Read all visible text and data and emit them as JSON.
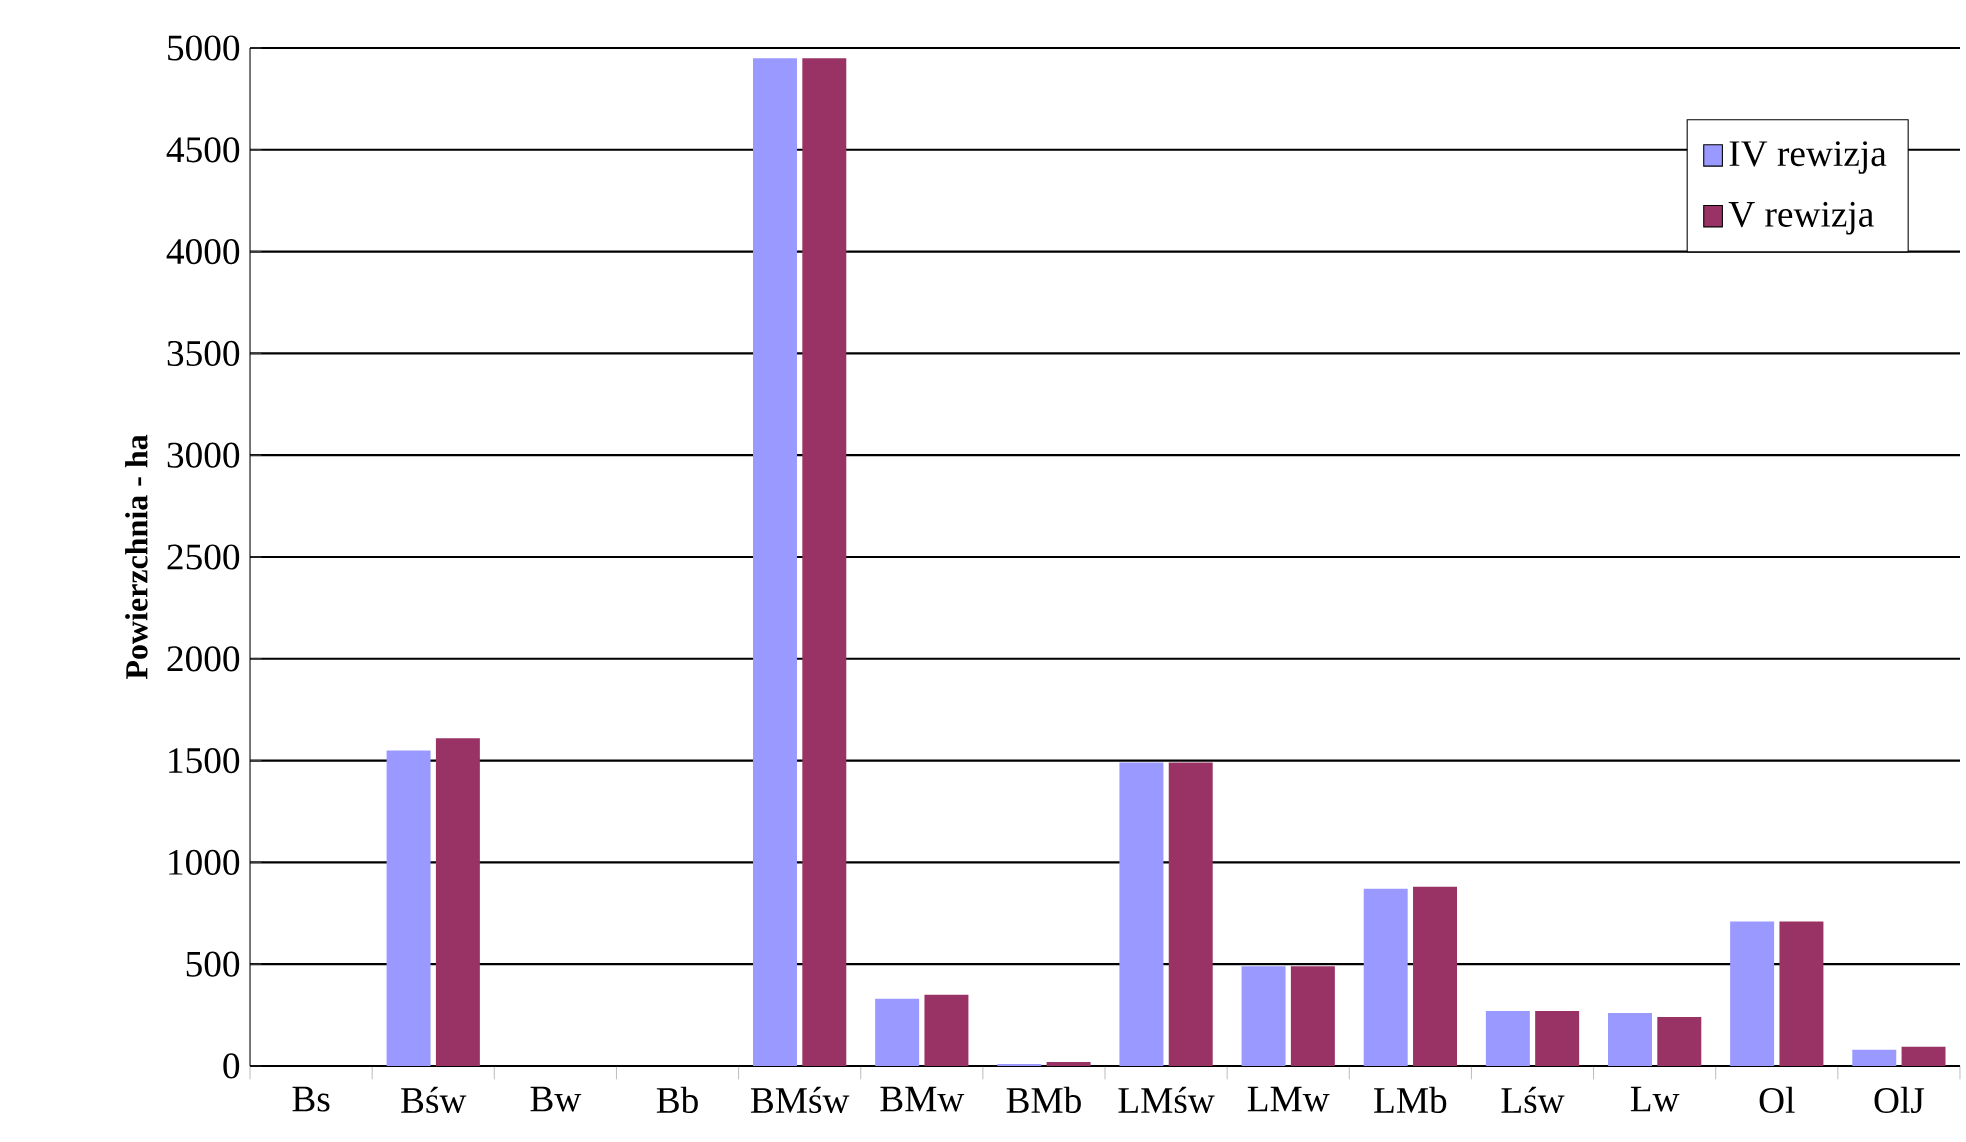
{
  "chart_data": {
    "type": "bar",
    "ylabel": "Powierzchnia - ha",
    "categories": [
      "Bs",
      "Bśw",
      "Bw",
      "Bb",
      "BMśw",
      "BMw",
      "BMb",
      "LMśw",
      "LMw",
      "LMb",
      "Lśw",
      "Lw",
      "Ol",
      "OlJ"
    ],
    "series": [
      {
        "name": "IV rewizja",
        "color": "#9999ff",
        "values": [
          0,
          1550,
          0,
          0,
          4950,
          330,
          10,
          1490,
          490,
          870,
          270,
          260,
          710,
          80
        ]
      },
      {
        "name": "V rewizja",
        "color": "#993366",
        "values": [
          0,
          1610,
          0,
          0,
          4950,
          350,
          20,
          1490,
          490,
          880,
          270,
          240,
          710,
          95
        ]
      }
    ],
    "ylim": [
      0,
      5000
    ],
    "yticks": [
      0,
      500,
      1000,
      1500,
      2000,
      2500,
      3000,
      3500,
      4000,
      4500,
      5000
    ],
    "grid": "y",
    "legend": "top right"
  }
}
